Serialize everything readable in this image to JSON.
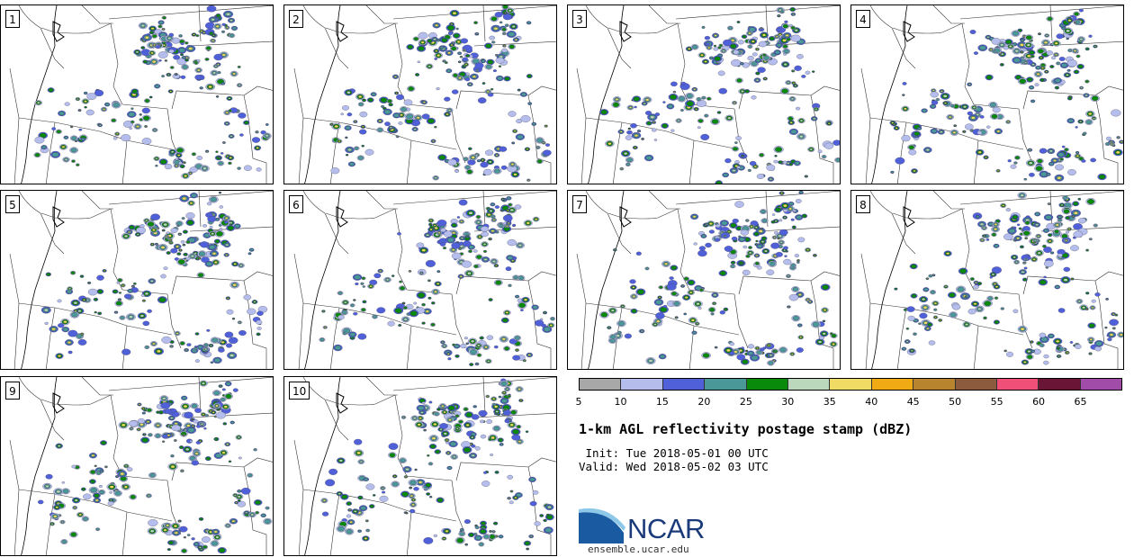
{
  "figure": {
    "title": "1-km AGL reflectivity postage stamp (dBZ)",
    "init_line": " Init: Tue 2018-05-01 00 UTC",
    "valid_line": "Valid: Wed 2018-05-02 03 UTC",
    "logo_text": "NCAR",
    "website": "ensemble.ucar.edu"
  },
  "panels": [
    {
      "label": "1"
    },
    {
      "label": "2"
    },
    {
      "label": "3"
    },
    {
      "label": "4"
    },
    {
      "label": "5"
    },
    {
      "label": "6"
    },
    {
      "label": "7"
    },
    {
      "label": "8"
    },
    {
      "label": "9"
    },
    {
      "label": "10"
    }
  ],
  "colorbar": {
    "ticks": [
      "5",
      "10",
      "15",
      "20",
      "25",
      "30",
      "35",
      "40",
      "45",
      "50",
      "55",
      "60",
      "65"
    ],
    "colors": [
      "#a8a8a8",
      "#b4bdec",
      "#5060d8",
      "#4a9898",
      "#0a8a0a",
      "#bcd8bc",
      "#f0dc64",
      "#f0aa14",
      "#b8842e",
      "#8c5a3c",
      "#f05078",
      "#6a1436",
      "#a04ca8"
    ]
  },
  "logo_colors": {
    "swoosh_light": "#8ec8e8",
    "swoosh_dark": "#1a5aa0",
    "text": "#1a3a7a"
  }
}
